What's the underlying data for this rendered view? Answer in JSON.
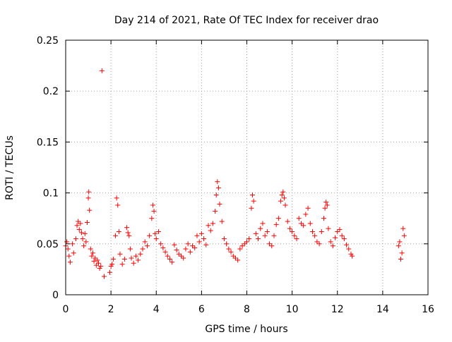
{
  "chart_data": {
    "type": "scatter",
    "title": "Day 214 of 2021, Rate Of TEC Index for receiver drao",
    "xlabel": "GPS time / hours",
    "ylabel": "ROTI / TECUs",
    "xlim": [
      0,
      16
    ],
    "ylim": [
      0,
      0.25
    ],
    "grid": true,
    "x_ticks": [
      0,
      2,
      4,
      6,
      8,
      10,
      12,
      14,
      16
    ],
    "x_tick_labels": [
      "0",
      "2",
      "4",
      "6",
      "8",
      "10",
      "12",
      "14",
      "16"
    ],
    "y_ticks": [
      0,
      0.05,
      0.1,
      0.15,
      0.2,
      0.25
    ],
    "y_tick_labels": [
      "0",
      "0.05",
      "0.1",
      "0.15",
      "0.2",
      "0.25"
    ],
    "marker": "+",
    "color": "#ff0000",
    "series": [
      {
        "name": "ROTI",
        "x": [
          0.0,
          0.05,
          0.1,
          0.15,
          0.2,
          0.3,
          0.35,
          0.45,
          0.5,
          0.55,
          0.6,
          0.65,
          0.7,
          0.75,
          0.8,
          0.85,
          0.9,
          0.95,
          1.0,
          1.02,
          1.05,
          1.1,
          1.15,
          1.2,
          1.25,
          1.3,
          1.35,
          1.4,
          1.45,
          1.5,
          1.55,
          1.6,
          1.7,
          1.95,
          2.0,
          2.05,
          2.1,
          2.2,
          2.25,
          2.3,
          2.35,
          2.4,
          2.5,
          2.6,
          2.7,
          2.75,
          2.8,
          2.85,
          2.9,
          3.0,
          3.1,
          3.2,
          3.3,
          3.4,
          3.5,
          3.6,
          3.7,
          3.8,
          3.85,
          3.9,
          3.95,
          4.0,
          4.1,
          4.2,
          4.3,
          4.4,
          4.5,
          4.6,
          4.7,
          4.8,
          4.9,
          5.0,
          5.1,
          5.2,
          5.3,
          5.4,
          5.5,
          5.6,
          5.7,
          5.8,
          5.9,
          6.0,
          6.1,
          6.2,
          6.3,
          6.4,
          6.5,
          6.6,
          6.65,
          6.7,
          6.75,
          6.8,
          6.9,
          7.0,
          7.1,
          7.2,
          7.3,
          7.4,
          7.5,
          7.6,
          7.7,
          7.8,
          7.9,
          8.0,
          8.1,
          8.2,
          8.25,
          8.3,
          8.4,
          8.5,
          8.6,
          8.7,
          8.8,
          8.9,
          9.0,
          9.1,
          9.2,
          9.3,
          9.4,
          9.5,
          9.55,
          9.6,
          9.65,
          9.7,
          9.8,
          9.9,
          10.0,
          10.1,
          10.2,
          10.3,
          10.4,
          10.5,
          10.6,
          10.7,
          10.8,
          10.9,
          11.0,
          11.1,
          11.2,
          11.3,
          11.4,
          11.45,
          11.5,
          11.55,
          11.6,
          11.7,
          11.8,
          11.9,
          12.0,
          12.1,
          12.2,
          12.3,
          12.4,
          12.5,
          12.6,
          12.65,
          14.7,
          14.75,
          14.8,
          14.85,
          14.9,
          14.95
        ],
        "y": [
          0.048,
          0.052,
          0.045,
          0.038,
          0.032,
          0.05,
          0.041,
          0.055,
          0.068,
          0.072,
          0.064,
          0.07,
          0.061,
          0.055,
          0.048,
          0.06,
          0.052,
          0.071,
          0.095,
          0.101,
          0.083,
          0.045,
          0.038,
          0.041,
          0.033,
          0.036,
          0.029,
          0.034,
          0.031,
          0.026,
          0.028,
          0.22,
          0.018,
          0.022,
          0.028,
          0.03,
          0.035,
          0.058,
          0.095,
          0.088,
          0.062,
          0.04,
          0.03,
          0.035,
          0.066,
          0.061,
          0.058,
          0.045,
          0.036,
          0.031,
          0.038,
          0.034,
          0.04,
          0.045,
          0.052,
          0.048,
          0.058,
          0.075,
          0.088,
          0.082,
          0.06,
          0.055,
          0.062,
          0.05,
          0.046,
          0.042,
          0.038,
          0.035,
          0.032,
          0.049,
          0.044,
          0.04,
          0.038,
          0.036,
          0.045,
          0.05,
          0.042,
          0.048,
          0.046,
          0.058,
          0.052,
          0.06,
          0.055,
          0.049,
          0.068,
          0.063,
          0.07,
          0.082,
          0.098,
          0.111,
          0.105,
          0.089,
          0.072,
          0.055,
          0.05,
          0.045,
          0.042,
          0.038,
          0.036,
          0.034,
          0.045,
          0.048,
          0.05,
          0.052,
          0.055,
          0.085,
          0.098,
          0.092,
          0.06,
          0.055,
          0.065,
          0.07,
          0.058,
          0.062,
          0.05,
          0.048,
          0.058,
          0.069,
          0.075,
          0.092,
          0.098,
          0.101,
          0.095,
          0.088,
          0.072,
          0.065,
          0.062,
          0.058,
          0.055,
          0.075,
          0.07,
          0.068,
          0.079,
          0.085,
          0.07,
          0.062,
          0.058,
          0.052,
          0.05,
          0.062,
          0.075,
          0.085,
          0.091,
          0.088,
          0.065,
          0.052,
          0.048,
          0.056,
          0.062,
          0.064,
          0.058,
          0.055,
          0.049,
          0.045,
          0.04,
          0.038,
          0.048,
          0.052,
          0.035,
          0.041,
          0.065,
          0.058
        ]
      }
    ]
  }
}
